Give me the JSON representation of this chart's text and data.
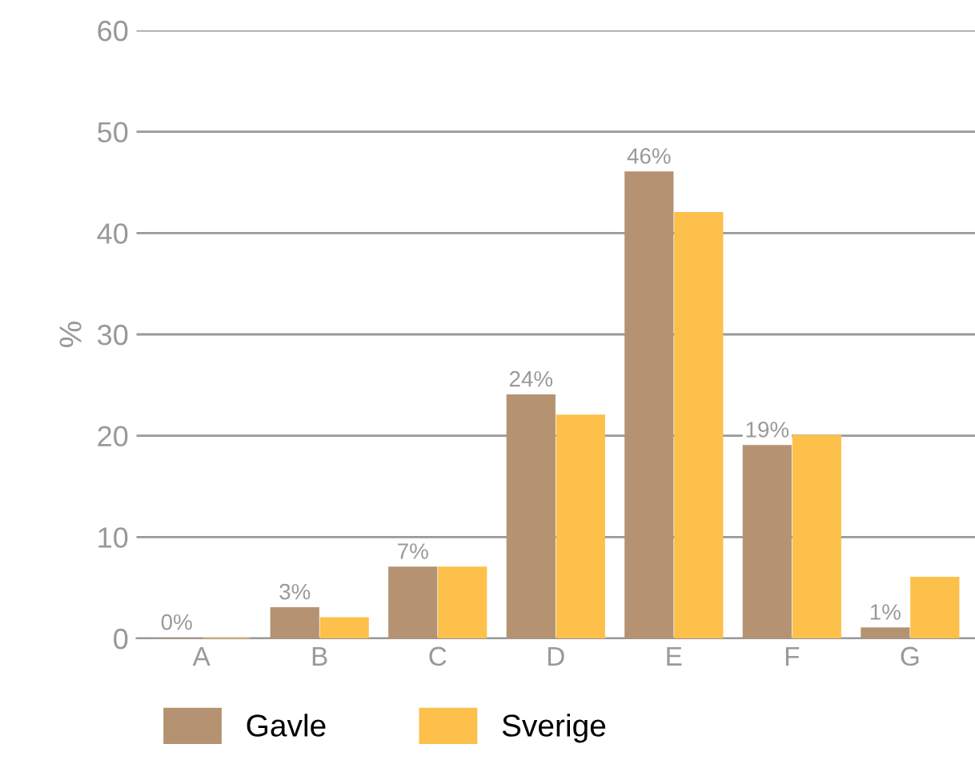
{
  "chart_data": {
    "type": "bar",
    "ylabel": "%",
    "categories": [
      "A",
      "B",
      "C",
      "D",
      "E",
      "F",
      "G"
    ],
    "series": [
      {
        "name": "Gavle",
        "color": "#b59372",
        "values": [
          0,
          3,
          7,
          24,
          46,
          19,
          1
        ],
        "value_labels": [
          "0%",
          "3%",
          "7%",
          "24%",
          "46%",
          "19%",
          "1%"
        ]
      },
      {
        "name": "Sverige",
        "color": "#fcc04b",
        "values": [
          0,
          2,
          7,
          22,
          42,
          20,
          6
        ]
      }
    ],
    "ylim": [
      0,
      60
    ],
    "yticks": [
      0,
      10,
      20,
      30,
      40,
      50,
      60
    ],
    "grid": "y",
    "legend": "bottom"
  }
}
